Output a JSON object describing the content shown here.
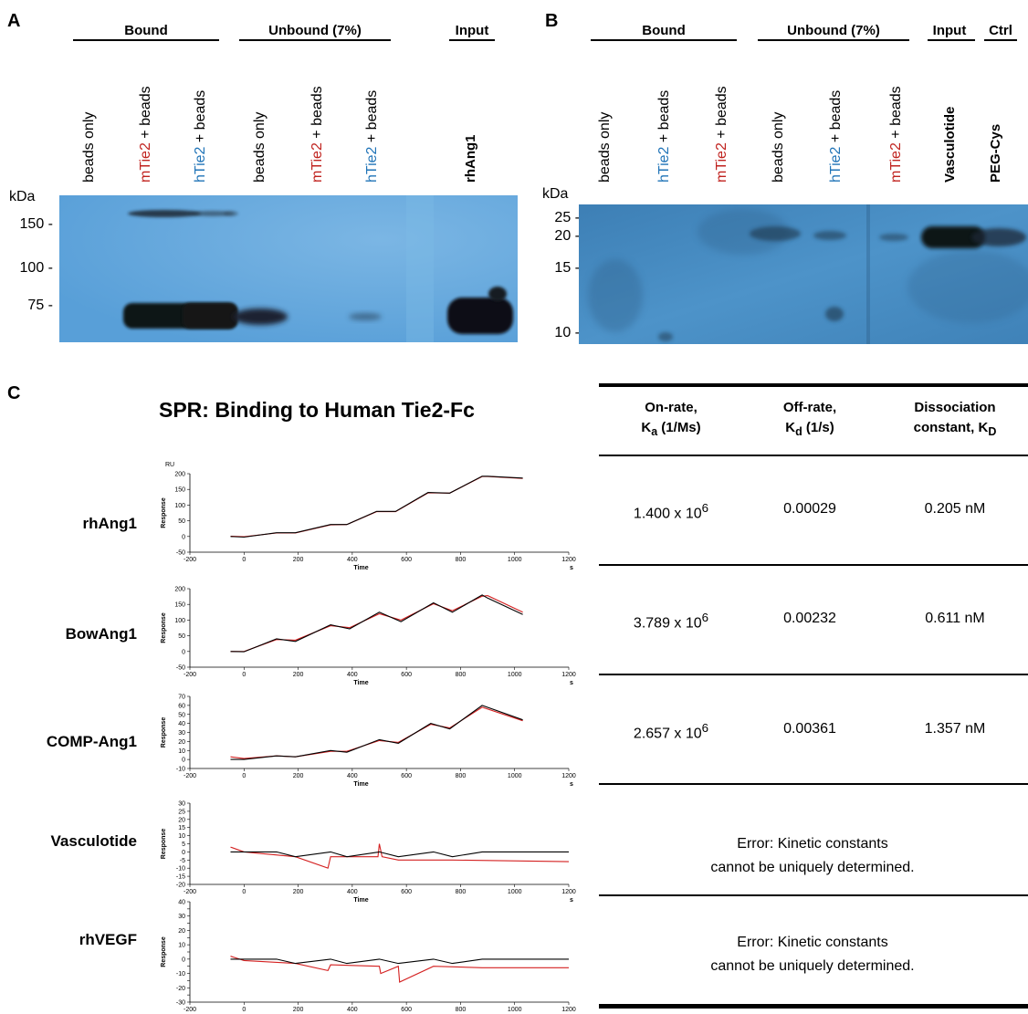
{
  "panelA": {
    "letter": "A",
    "groups": [
      "Bound",
      "Unbound (7%)",
      "Input"
    ],
    "lanes": [
      {
        "parts": [
          {
            "t": "beads only",
            "c": ""
          }
        ]
      },
      {
        "parts": [
          {
            "t": "mTie2",
            "c": "red"
          },
          {
            "t": " + beads",
            "c": ""
          }
        ]
      },
      {
        "parts": [
          {
            "t": "hTie2",
            "c": "blue"
          },
          {
            "t": " + beads",
            "c": ""
          }
        ]
      },
      {
        "parts": [
          {
            "t": "beads only",
            "c": ""
          }
        ]
      },
      {
        "parts": [
          {
            "t": "mTie2",
            "c": "red"
          },
          {
            "t": " + beads",
            "c": ""
          }
        ]
      },
      {
        "parts": [
          {
            "t": "hTie2",
            "c": "blue"
          },
          {
            "t": " + beads",
            "c": ""
          }
        ]
      },
      {
        "parts": [
          {
            "t": "rhAng1",
            "c": ""
          }
        ],
        "bold": true
      }
    ],
    "kda": "kDa",
    "markers": [
      "150 -",
      "100 -",
      "75 -"
    ]
  },
  "panelB": {
    "letter": "B",
    "groups": [
      "Bound",
      "Unbound (7%)",
      "Input",
      "Ctrl"
    ],
    "lanes": [
      {
        "parts": [
          {
            "t": "beads only",
            "c": ""
          }
        ]
      },
      {
        "parts": [
          {
            "t": "hTie2",
            "c": "blue"
          },
          {
            "t": " + beads",
            "c": ""
          }
        ]
      },
      {
        "parts": [
          {
            "t": "mTie2",
            "c": "red"
          },
          {
            "t": " + beads",
            "c": ""
          }
        ]
      },
      {
        "parts": [
          {
            "t": "beads only",
            "c": ""
          }
        ]
      },
      {
        "parts": [
          {
            "t": "hTie2",
            "c": "blue"
          },
          {
            "t": " + beads",
            "c": ""
          }
        ]
      },
      {
        "parts": [
          {
            "t": "mTie2",
            "c": "red"
          },
          {
            "t": " + beads",
            "c": ""
          }
        ]
      },
      {
        "parts": [
          {
            "t": "Vasculotide",
            "c": ""
          }
        ],
        "bold": true
      },
      {
        "parts": [
          {
            "t": "PEG-Cys",
            "c": ""
          }
        ],
        "bold": true
      }
    ],
    "kda": "kDa",
    "markers": [
      "25 -",
      "20 -",
      "15 -",
      "10 -"
    ]
  },
  "panelC": {
    "letter": "C",
    "title": "SPR: Binding to Human Tie2-Fc",
    "samples": [
      "rhAng1",
      "BowAng1",
      "COMP-Ang1",
      "Vasculotide",
      "rhVEGF"
    ],
    "table": {
      "headers": [
        {
          "line1": "On-rate,",
          "line2": "K",
          "sub": "a",
          "rest": " (1/Ms)"
        },
        {
          "line1": "Off-rate,",
          "line2": "K",
          "sub": "d",
          "rest": " (1/s)"
        },
        {
          "line1": "Dissociation",
          "line2": "constant, K",
          "sub": "D",
          "rest": ""
        }
      ],
      "rows": [
        {
          "on_mant": "1.400 x 10",
          "on_exp": "6",
          "off": "0.00029",
          "kd": "0.205 nM"
        },
        {
          "on_mant": "3.789 x 10",
          "on_exp": "6",
          "off": "0.00232",
          "kd": "0.611 nM"
        },
        {
          "on_mant": "2.657 x 10",
          "on_exp": "6",
          "off": "0.00361",
          "kd": "1.357 nM"
        }
      ],
      "error_line1": "Error: Kinetic constants",
      "error_line2": "cannot be uniquely determined."
    }
  },
  "chart_data": [
    {
      "type": "line",
      "title": "rhAng1",
      "ylabel_top": "RU",
      "ylabel": "Response",
      "xlabel": "Time",
      "xunit": "s",
      "xlim": [
        -200,
        1200
      ],
      "ylim": [
        -50,
        200
      ],
      "xticks": [
        -200,
        0,
        200,
        400,
        600,
        800,
        1000,
        1200
      ],
      "yticks": [
        -50,
        0,
        50,
        100,
        150,
        200
      ],
      "series": [
        {
          "color": "#000000",
          "x": [
            -50,
            0,
            120,
            190,
            320,
            380,
            490,
            560,
            680,
            760,
            880,
            900,
            1030
          ],
          "y": [
            0,
            -2,
            12,
            12,
            38,
            38,
            80,
            80,
            140,
            138,
            192,
            192,
            186
          ]
        },
        {
          "color": "#d42020",
          "x": [
            -50,
            0,
            120,
            190,
            320,
            380,
            490,
            560,
            680,
            760,
            880,
            900,
            1030
          ],
          "y": [
            1,
            -1,
            11,
            11,
            37,
            38,
            79,
            79,
            139,
            138,
            191,
            191,
            185
          ]
        }
      ]
    },
    {
      "type": "line",
      "title": "BowAng1",
      "ylabel": "Response",
      "xlabel": "Time",
      "xunit": "s",
      "xlim": [
        -200,
        1200
      ],
      "ylim": [
        -50,
        200
      ],
      "xticks": [
        -200,
        0,
        200,
        400,
        600,
        800,
        1000,
        1200
      ],
      "yticks": [
        -50,
        0,
        50,
        100,
        150,
        200
      ],
      "series": [
        {
          "color": "#000000",
          "x": [
            -50,
            0,
            120,
            190,
            320,
            390,
            500,
            580,
            700,
            770,
            880,
            900,
            1030
          ],
          "y": [
            0,
            -1,
            40,
            32,
            85,
            72,
            125,
            95,
            155,
            125,
            180,
            170,
            118
          ]
        },
        {
          "color": "#d42020",
          "x": [
            -50,
            0,
            120,
            190,
            320,
            390,
            500,
            580,
            700,
            770,
            880,
            900,
            1030
          ],
          "y": [
            0,
            0,
            38,
            36,
            82,
            76,
            120,
            100,
            152,
            130,
            176,
            178,
            125
          ]
        }
      ]
    },
    {
      "type": "line",
      "title": "COMP-Ang1",
      "ylabel": "Response",
      "xlabel": "Time",
      "xunit": "s",
      "xlim": [
        -200,
        1200
      ],
      "ylim": [
        -10,
        70
      ],
      "xticks": [
        -200,
        0,
        200,
        400,
        600,
        800,
        1000,
        1200
      ],
      "yticks": [
        -10,
        0,
        10,
        20,
        30,
        40,
        50,
        60,
        70
      ],
      "series": [
        {
          "color": "#000000",
          "x": [
            -50,
            0,
            120,
            190,
            320,
            380,
            500,
            570,
            690,
            760,
            880,
            1030
          ],
          "y": [
            0,
            0,
            4,
            3,
            10,
            8,
            22,
            18,
            40,
            34,
            60,
            44
          ]
        },
        {
          "color": "#d42020",
          "x": [
            -50,
            0,
            120,
            190,
            320,
            380,
            500,
            570,
            690,
            760,
            880,
            1030
          ],
          "y": [
            3,
            1,
            4,
            3,
            9,
            9,
            21,
            19,
            39,
            35,
            58,
            43
          ]
        }
      ]
    },
    {
      "type": "line",
      "title": "Vasculotide",
      "ylabel": "Response",
      "xlabel": "Time",
      "xunit": "s",
      "xlim": [
        -200,
        1200
      ],
      "ylim": [
        -20,
        30
      ],
      "xticks": [
        -200,
        0,
        200,
        400,
        600,
        800,
        1000,
        1200
      ],
      "yticks": [
        -20,
        -15,
        -10,
        -5,
        0,
        5,
        10,
        15,
        20,
        25,
        30
      ],
      "series": [
        {
          "color": "#000000",
          "x": [
            -50,
            0,
            120,
            190,
            320,
            380,
            500,
            570,
            700,
            770,
            880,
            1200
          ],
          "y": [
            0,
            0,
            0,
            -3,
            0,
            -3,
            0,
            -3,
            0,
            -3,
            0,
            0
          ]
        },
        {
          "color": "#d42020",
          "x": [
            -50,
            0,
            190,
            310,
            320,
            380,
            495,
            500,
            510,
            570,
            770,
            1200
          ],
          "y": [
            3,
            0,
            -3,
            -10,
            -3,
            -3,
            -3,
            5,
            -3,
            -5,
            -5,
            -6
          ]
        }
      ]
    },
    {
      "type": "line",
      "title": "rhVEGF",
      "ylabel": "Response",
      "xlabel": "Time",
      "xunit": "s",
      "xlim": [
        -200,
        1200
      ],
      "ylim": [
        -30,
        40
      ],
      "xticks": [
        -200,
        0,
        200,
        400,
        600,
        800,
        1000,
        1200
      ],
      "yticks": [
        -30,
        -25,
        -20,
        -15,
        -10,
        -5,
        0,
        5,
        10,
        15,
        20,
        25,
        30,
        35,
        40
      ],
      "series": [
        {
          "color": "#000000",
          "x": [
            -50,
            0,
            120,
            190,
            320,
            380,
            500,
            570,
            700,
            770,
            880,
            1200
          ],
          "y": [
            0,
            0,
            0,
            -3,
            0,
            -3,
            0,
            -3,
            0,
            -3,
            0,
            0
          ]
        },
        {
          "color": "#d42020",
          "x": [
            -50,
            0,
            190,
            310,
            320,
            500,
            505,
            570,
            575,
            700,
            880,
            1200
          ],
          "y": [
            2,
            -1,
            -3,
            -8,
            -4,
            -5,
            -10,
            -5,
            -16,
            -5,
            -6,
            -6
          ]
        }
      ]
    }
  ]
}
